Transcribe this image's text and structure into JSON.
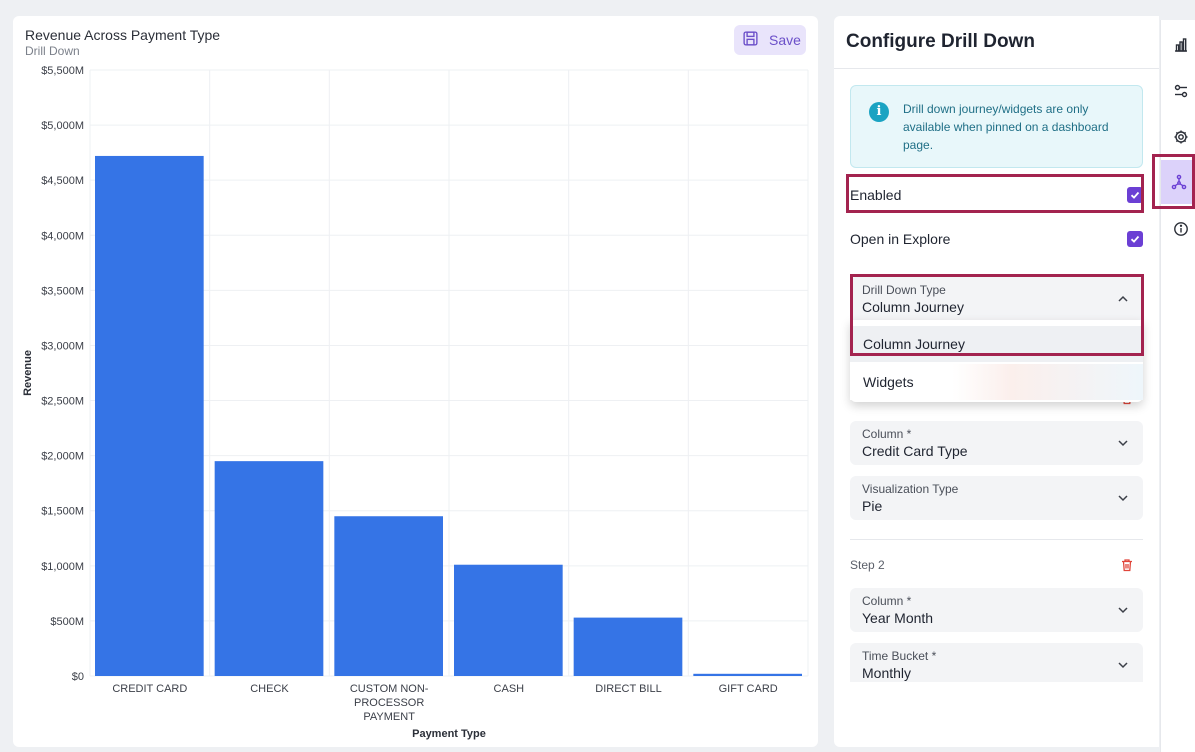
{
  "chart": {
    "title": "Revenue Across Payment Type",
    "subtitle": "Drill Down",
    "save_label": "Save"
  },
  "chart_data": {
    "type": "bar",
    "title": "Revenue Across Payment Type",
    "subtitle": "Drill Down",
    "xlabel": "Payment Type",
    "ylabel": "Revenue",
    "categories": [
      "CREDIT CARD",
      "CHECK",
      "CUSTOM NON-PROCESSOR PAYMENT",
      "CASH",
      "DIRECT BILL",
      "GIFT CARD"
    ],
    "category_label_lines": [
      [
        "CREDIT CARD"
      ],
      [
        "CHECK"
      ],
      [
        "CUSTOM NON-",
        "PROCESSOR",
        "PAYMENT"
      ],
      [
        "CASH"
      ],
      [
        "DIRECT BILL"
      ],
      [
        "GIFT CARD"
      ]
    ],
    "values": [
      4720,
      1950,
      1450,
      1010,
      530,
      20
    ],
    "value_unit": "M",
    "ylim": [
      0,
      5500
    ],
    "yticks": [
      0,
      500,
      1000,
      1500,
      2000,
      2500,
      3000,
      3500,
      4000,
      4500,
      5000,
      5500
    ],
    "ytick_labels": [
      "$0",
      "$500M",
      "$1,000M",
      "$1,500M",
      "$2,000M",
      "$2,500M",
      "$3,000M",
      "$3,500M",
      "$4,000M",
      "$4,500M",
      "$5,000M",
      "$5,500M"
    ],
    "grid": true,
    "legend": "none",
    "bar_color": "#3574e6"
  },
  "panel": {
    "title": "Configure Drill Down",
    "info_text": "Drill down journey/widgets are only available when pinned on a dashboard page.",
    "enabled_label": "Enabled",
    "enabled_checked": true,
    "explore_label": "Open in Explore",
    "explore_checked": true,
    "drill_type": {
      "label": "Drill Down Type",
      "value": "Column Journey",
      "options": [
        "Column Journey",
        "Widgets"
      ]
    },
    "step1": {
      "column_label": "Column *",
      "column_value": "Credit Card Type",
      "viz_label": "Visualization Type",
      "viz_value": "Pie"
    },
    "step2": {
      "label": "Step 2",
      "column_label": "Column *",
      "column_value": "Year Month",
      "bucket_label": "Time Bucket *",
      "bucket_value": "Monthly"
    }
  },
  "rail": {
    "icons": [
      "bar-chart-icon",
      "sliders-icon",
      "gear-icon",
      "drill-down-icon",
      "info-icon"
    ],
    "active": "drill-down-icon"
  },
  "colors": {
    "accent": "#6b3fd4",
    "highlight": "#a3234f",
    "bar": "#3574e6",
    "info": "#1aa3c2"
  }
}
